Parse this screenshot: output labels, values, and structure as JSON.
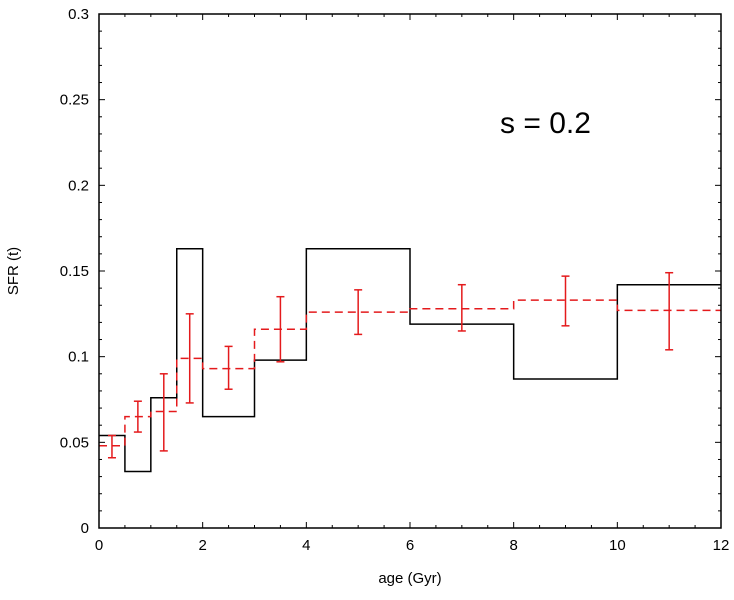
{
  "chart_data": {
    "type": "line",
    "title": "",
    "xlabel": "age (Gyr)",
    "ylabel": "SFR (t)",
    "xlim": [
      0,
      12
    ],
    "ylim": [
      0,
      0.3
    ],
    "xticks": [
      0,
      2,
      4,
      6,
      8,
      10,
      12
    ],
    "yticks": [
      0,
      0.05,
      0.1,
      0.15,
      0.2,
      0.25,
      0.3
    ],
    "xtick_labels": [
      "0",
      "2",
      "4",
      "6",
      "8",
      "10",
      "12"
    ],
    "ytick_labels": [
      "0",
      "0.05",
      "0.1",
      "0.15",
      "0.2",
      "0.25",
      "0.3"
    ],
    "annotation": "s = 0.2",
    "grid": false,
    "series": [
      {
        "style": "step",
        "color": "#000000",
        "line": "solid",
        "bins": [
          {
            "x0": 0,
            "x1": 0.5,
            "y": 0.054
          },
          {
            "x0": 0.5,
            "x1": 1.0,
            "y": 0.033
          },
          {
            "x0": 1.0,
            "x1": 1.5,
            "y": 0.076
          },
          {
            "x0": 1.5,
            "x1": 2.0,
            "y": 0.163
          },
          {
            "x0": 2.0,
            "x1": 3.0,
            "y": 0.065
          },
          {
            "x0": 3.0,
            "x1": 4.0,
            "y": 0.098
          },
          {
            "x0": 4.0,
            "x1": 6.0,
            "y": 0.163
          },
          {
            "x0": 6.0,
            "x1": 8.0,
            "y": 0.119
          },
          {
            "x0": 8.0,
            "x1": 10.0,
            "y": 0.087
          },
          {
            "x0": 10.0,
            "x1": 12.0,
            "y": 0.142
          }
        ]
      },
      {
        "style": "step-errorbar",
        "color": "#e41a1c",
        "line": "dashed",
        "bins": [
          {
            "x0": 0,
            "x1": 0.5,
            "x": 0.25,
            "y": 0.048,
            "err_low": 0.041,
            "err_high": 0.054
          },
          {
            "x0": 0.5,
            "x1": 1.0,
            "x": 0.75,
            "y": 0.065,
            "err_low": 0.056,
            "err_high": 0.074
          },
          {
            "x0": 1.0,
            "x1": 1.5,
            "x": 1.25,
            "y": 0.068,
            "err_low": 0.045,
            "err_high": 0.09
          },
          {
            "x0": 1.5,
            "x1": 2.0,
            "x": 1.75,
            "y": 0.099,
            "err_low": 0.073,
            "err_high": 0.125
          },
          {
            "x0": 2.0,
            "x1": 3.0,
            "x": 2.5,
            "y": 0.093,
            "err_low": 0.081,
            "err_high": 0.106
          },
          {
            "x0": 3.0,
            "x1": 4.0,
            "x": 3.5,
            "y": 0.116,
            "err_low": 0.097,
            "err_high": 0.135
          },
          {
            "x0": 4.0,
            "x1": 6.0,
            "x": 5.0,
            "y": 0.126,
            "err_low": 0.113,
            "err_high": 0.139
          },
          {
            "x0": 6.0,
            "x1": 8.0,
            "x": 7.0,
            "y": 0.128,
            "err_low": 0.115,
            "err_high": 0.142
          },
          {
            "x0": 8.0,
            "x1": 10.0,
            "x": 9.0,
            "y": 0.133,
            "err_low": 0.118,
            "err_high": 0.147
          },
          {
            "x0": 10.0,
            "x1": 12.0,
            "x": 11.0,
            "y": 0.127,
            "err_low": 0.104,
            "err_high": 0.149
          }
        ]
      }
    ]
  }
}
